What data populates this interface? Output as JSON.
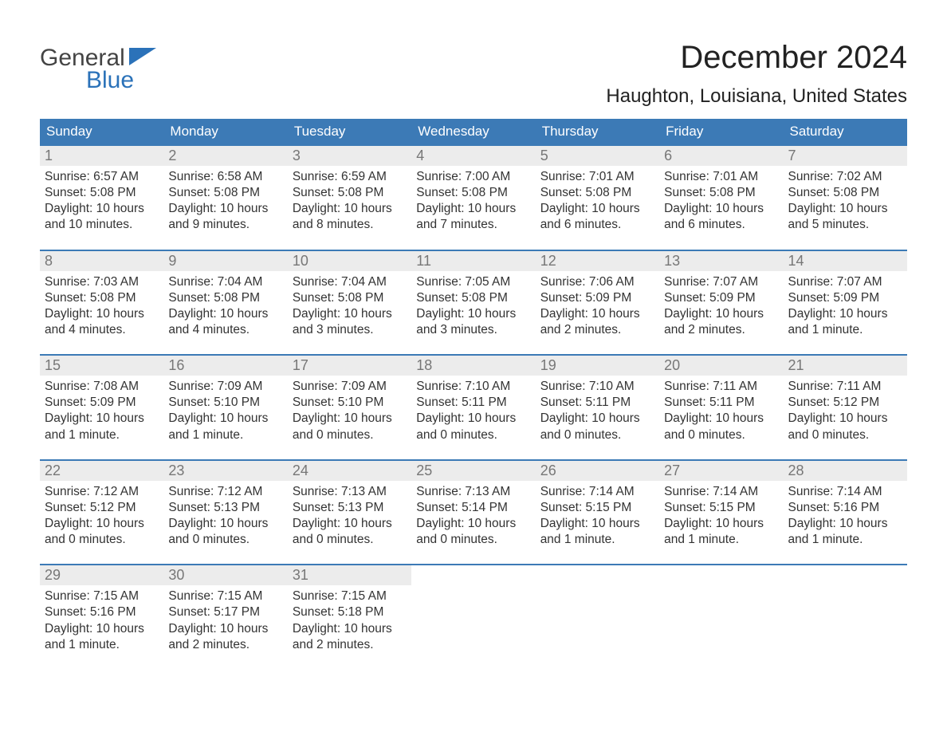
{
  "brand": {
    "line1": "General",
    "line2": "Blue",
    "flag_color": "#2b72b9"
  },
  "title": "December 2024",
  "location": "Haughton, Louisiana, United States",
  "colors": {
    "header_bg": "#3c7ab6",
    "header_text": "#ffffff",
    "daynum_bg": "#ececec",
    "daynum_text": "#777777",
    "body_text": "#333333",
    "week_border": "#3c7ab6",
    "page_bg": "#ffffff"
  },
  "typography": {
    "title_fontsize": 40,
    "location_fontsize": 24,
    "dow_fontsize": 17,
    "daynum_fontsize": 18,
    "body_fontsize": 15.5
  },
  "days_of_week": [
    "Sunday",
    "Monday",
    "Tuesday",
    "Wednesday",
    "Thursday",
    "Friday",
    "Saturday"
  ],
  "labels": {
    "sunrise": "Sunrise:",
    "sunset": "Sunset:",
    "daylight_prefix": "Daylight:"
  },
  "weeks": [
    [
      {
        "n": "1",
        "sunrise": "6:57 AM",
        "sunset": "5:08 PM",
        "d1": "Daylight: 10 hours",
        "d2": "and 10 minutes."
      },
      {
        "n": "2",
        "sunrise": "6:58 AM",
        "sunset": "5:08 PM",
        "d1": "Daylight: 10 hours",
        "d2": "and 9 minutes."
      },
      {
        "n": "3",
        "sunrise": "6:59 AM",
        "sunset": "5:08 PM",
        "d1": "Daylight: 10 hours",
        "d2": "and 8 minutes."
      },
      {
        "n": "4",
        "sunrise": "7:00 AM",
        "sunset": "5:08 PM",
        "d1": "Daylight: 10 hours",
        "d2": "and 7 minutes."
      },
      {
        "n": "5",
        "sunrise": "7:01 AM",
        "sunset": "5:08 PM",
        "d1": "Daylight: 10 hours",
        "d2": "and 6 minutes."
      },
      {
        "n": "6",
        "sunrise": "7:01 AM",
        "sunset": "5:08 PM",
        "d1": "Daylight: 10 hours",
        "d2": "and 6 minutes."
      },
      {
        "n": "7",
        "sunrise": "7:02 AM",
        "sunset": "5:08 PM",
        "d1": "Daylight: 10 hours",
        "d2": "and 5 minutes."
      }
    ],
    [
      {
        "n": "8",
        "sunrise": "7:03 AM",
        "sunset": "5:08 PM",
        "d1": "Daylight: 10 hours",
        "d2": "and 4 minutes."
      },
      {
        "n": "9",
        "sunrise": "7:04 AM",
        "sunset": "5:08 PM",
        "d1": "Daylight: 10 hours",
        "d2": "and 4 minutes."
      },
      {
        "n": "10",
        "sunrise": "7:04 AM",
        "sunset": "5:08 PM",
        "d1": "Daylight: 10 hours",
        "d2": "and 3 minutes."
      },
      {
        "n": "11",
        "sunrise": "7:05 AM",
        "sunset": "5:08 PM",
        "d1": "Daylight: 10 hours",
        "d2": "and 3 minutes."
      },
      {
        "n": "12",
        "sunrise": "7:06 AM",
        "sunset": "5:09 PM",
        "d1": "Daylight: 10 hours",
        "d2": "and 2 minutes."
      },
      {
        "n": "13",
        "sunrise": "7:07 AM",
        "sunset": "5:09 PM",
        "d1": "Daylight: 10 hours",
        "d2": "and 2 minutes."
      },
      {
        "n": "14",
        "sunrise": "7:07 AM",
        "sunset": "5:09 PM",
        "d1": "Daylight: 10 hours",
        "d2": "and 1 minute."
      }
    ],
    [
      {
        "n": "15",
        "sunrise": "7:08 AM",
        "sunset": "5:09 PM",
        "d1": "Daylight: 10 hours",
        "d2": "and 1 minute."
      },
      {
        "n": "16",
        "sunrise": "7:09 AM",
        "sunset": "5:10 PM",
        "d1": "Daylight: 10 hours",
        "d2": "and 1 minute."
      },
      {
        "n": "17",
        "sunrise": "7:09 AM",
        "sunset": "5:10 PM",
        "d1": "Daylight: 10 hours",
        "d2": "and 0 minutes."
      },
      {
        "n": "18",
        "sunrise": "7:10 AM",
        "sunset": "5:11 PM",
        "d1": "Daylight: 10 hours",
        "d2": "and 0 minutes."
      },
      {
        "n": "19",
        "sunrise": "7:10 AM",
        "sunset": "5:11 PM",
        "d1": "Daylight: 10 hours",
        "d2": "and 0 minutes."
      },
      {
        "n": "20",
        "sunrise": "7:11 AM",
        "sunset": "5:11 PM",
        "d1": "Daylight: 10 hours",
        "d2": "and 0 minutes."
      },
      {
        "n": "21",
        "sunrise": "7:11 AM",
        "sunset": "5:12 PM",
        "d1": "Daylight: 10 hours",
        "d2": "and 0 minutes."
      }
    ],
    [
      {
        "n": "22",
        "sunrise": "7:12 AM",
        "sunset": "5:12 PM",
        "d1": "Daylight: 10 hours",
        "d2": "and 0 minutes."
      },
      {
        "n": "23",
        "sunrise": "7:12 AM",
        "sunset": "5:13 PM",
        "d1": "Daylight: 10 hours",
        "d2": "and 0 minutes."
      },
      {
        "n": "24",
        "sunrise": "7:13 AM",
        "sunset": "5:13 PM",
        "d1": "Daylight: 10 hours",
        "d2": "and 0 minutes."
      },
      {
        "n": "25",
        "sunrise": "7:13 AM",
        "sunset": "5:14 PM",
        "d1": "Daylight: 10 hours",
        "d2": "and 0 minutes."
      },
      {
        "n": "26",
        "sunrise": "7:14 AM",
        "sunset": "5:15 PM",
        "d1": "Daylight: 10 hours",
        "d2": "and 1 minute."
      },
      {
        "n": "27",
        "sunrise": "7:14 AM",
        "sunset": "5:15 PM",
        "d1": "Daylight: 10 hours",
        "d2": "and 1 minute."
      },
      {
        "n": "28",
        "sunrise": "7:14 AM",
        "sunset": "5:16 PM",
        "d1": "Daylight: 10 hours",
        "d2": "and 1 minute."
      }
    ],
    [
      {
        "n": "29",
        "sunrise": "7:15 AM",
        "sunset": "5:16 PM",
        "d1": "Daylight: 10 hours",
        "d2": "and 1 minute."
      },
      {
        "n": "30",
        "sunrise": "7:15 AM",
        "sunset": "5:17 PM",
        "d1": "Daylight: 10 hours",
        "d2": "and 2 minutes."
      },
      {
        "n": "31",
        "sunrise": "7:15 AM",
        "sunset": "5:18 PM",
        "d1": "Daylight: 10 hours",
        "d2": "and 2 minutes."
      },
      null,
      null,
      null,
      null
    ]
  ]
}
